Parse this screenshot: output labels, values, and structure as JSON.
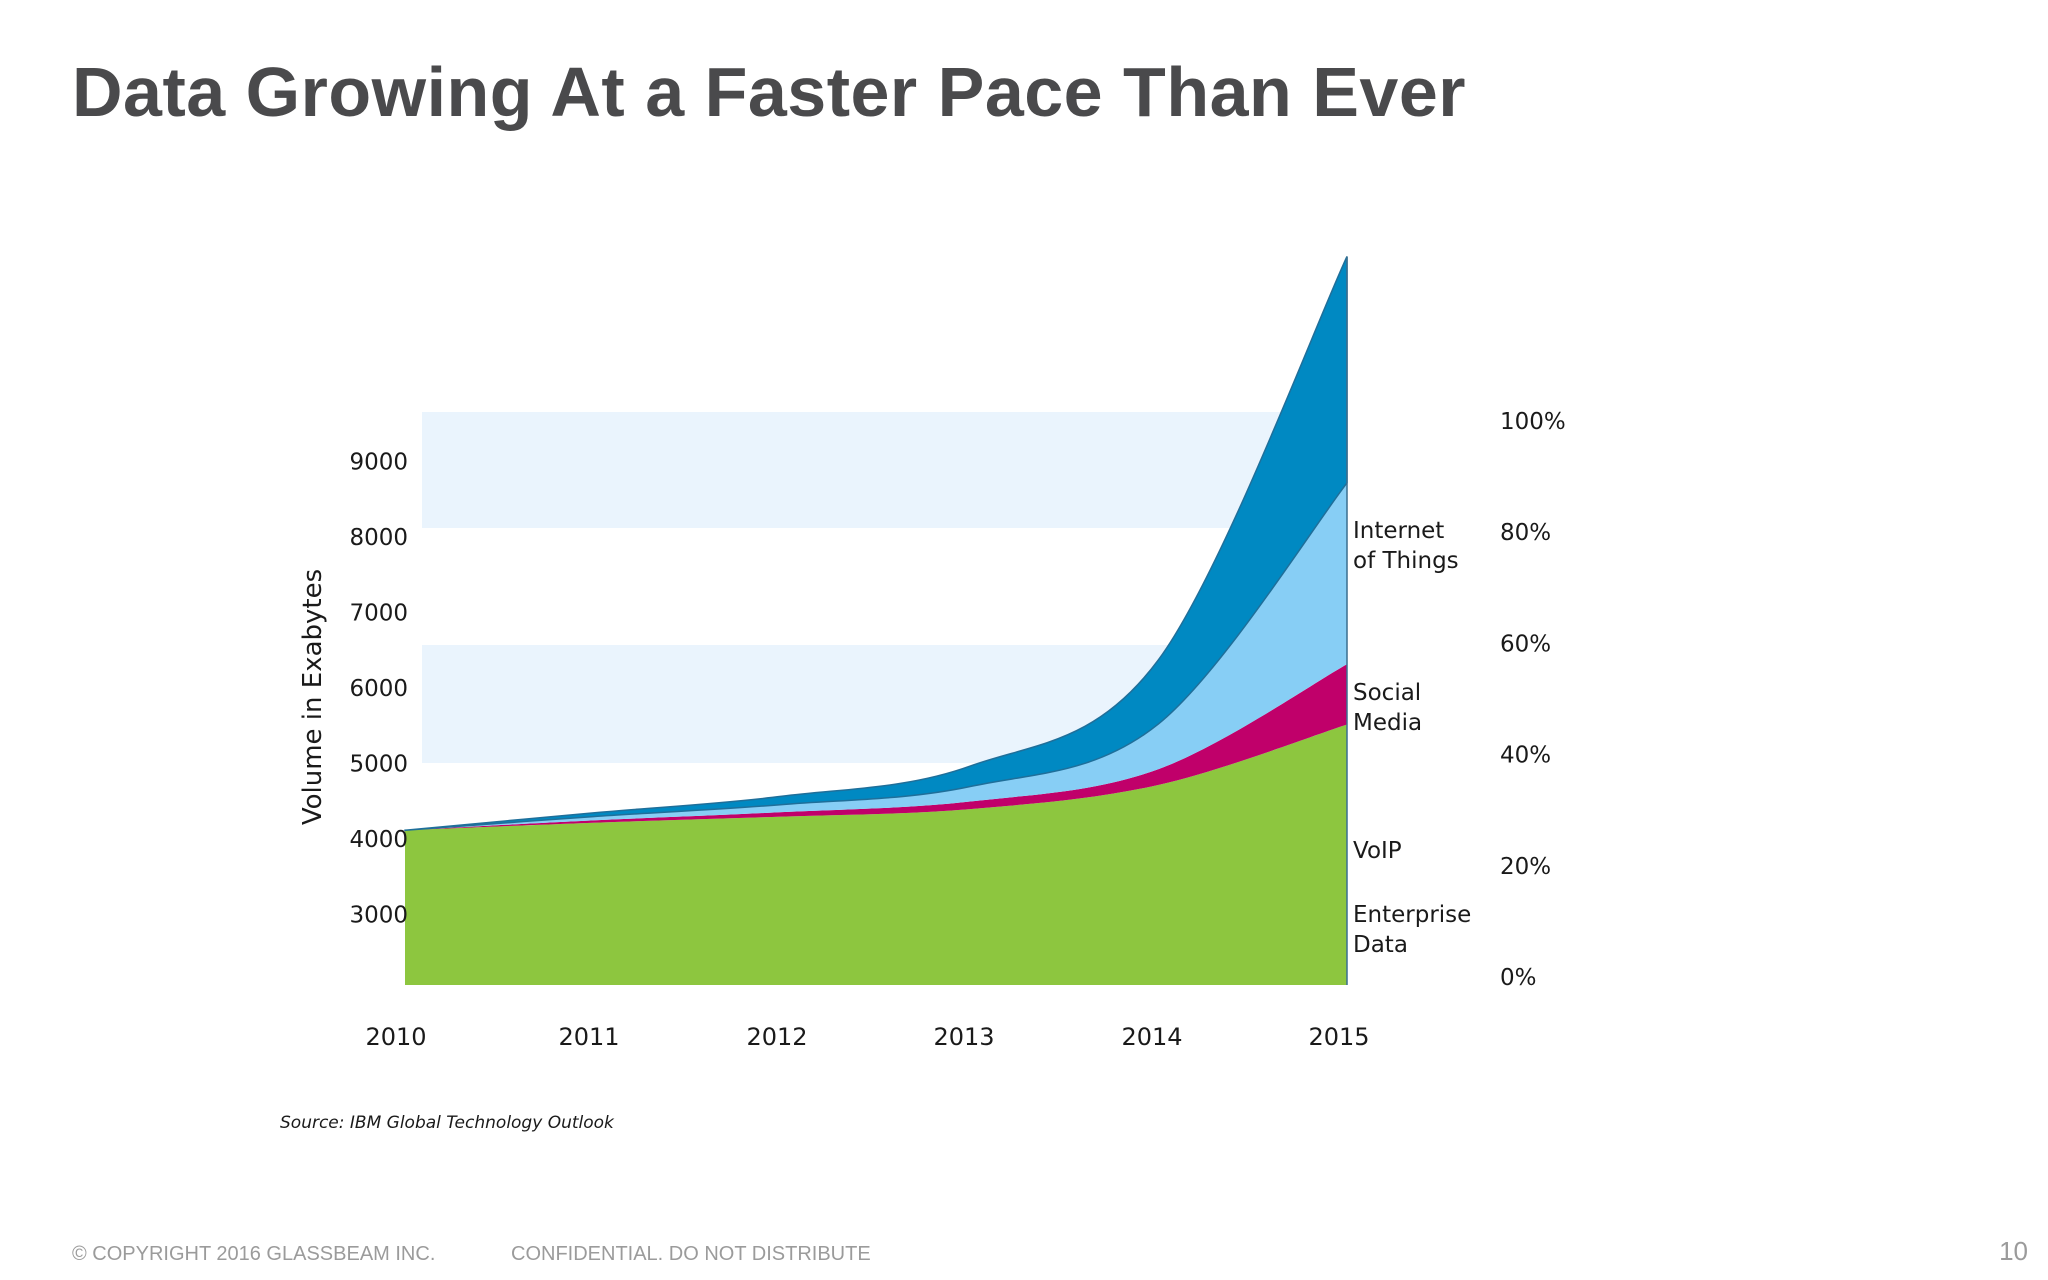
{
  "slide": {
    "title": "Data Growing At a Faster Pace Than Ever",
    "footer_copyright": "© COPYRIGHT 2016  GLASSBEAM INC.",
    "footer_confidential": "CONFIDENTIAL. DO NOT DISTRIBUTE",
    "page_number": "10"
  },
  "colors": {
    "title": "#4a4a4c",
    "enterprise": "#8dc63f",
    "voip": "#c0006a",
    "social": "#87cef5",
    "iot": "#0089c2",
    "band": "#eaf4fd",
    "axis_text": "#1a1a1a",
    "footer": "#9b9b9b"
  },
  "chart_data": {
    "type": "area",
    "stacked": true,
    "title": "",
    "ylabel": "Volume in Exabytes",
    "xlabel": "",
    "x": [
      "2010",
      "2011",
      "2012",
      "2013",
      "2014",
      "2015"
    ],
    "ylim": [
      2050,
      9640
    ],
    "yticks": [
      3000,
      4000,
      5000,
      6000,
      7000,
      8000,
      9000
    ],
    "secondary_axis_ticks": [
      "0%",
      "20%",
      "40%",
      "60%",
      "80%",
      "100%"
    ],
    "source": "Source: IBM Global Technology Outlook",
    "series": [
      {
        "name": "Enterprise Data",
        "label_lines": [
          "Enterprise",
          "Data"
        ],
        "color": "#8dc63f",
        "values": [
          2050,
          2150,
          2230,
          2330,
          2650,
          3450
        ]
      },
      {
        "name": "VoIP",
        "label_lines": [
          "VoIP"
        ],
        "color": "#c0006a",
        "values": [
          0,
          30,
          60,
          100,
          210,
          800
        ]
      },
      {
        "name": "Social Media",
        "label_lines": [
          "Social",
          "Media"
        ],
        "color": "#87cef5",
        "values": [
          0,
          50,
          100,
          200,
          600,
          2400
        ]
      },
      {
        "name": "Internet of Things",
        "label_lines": [
          "Internet",
          "of Things"
        ],
        "color": "#0089c2",
        "values": [
          0,
          50,
          110,
          270,
          850,
          3000
        ]
      }
    ]
  }
}
